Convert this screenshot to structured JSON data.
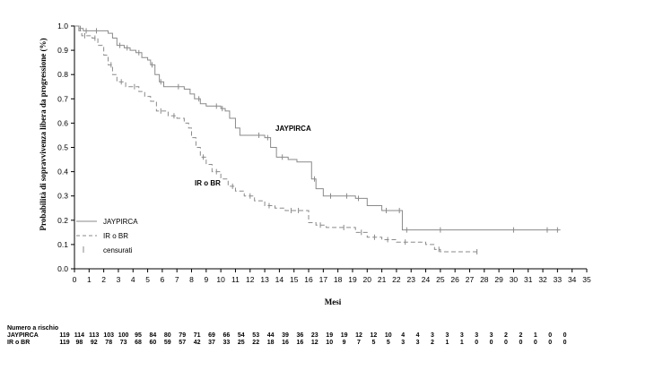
{
  "chart_data": {
    "type": "line",
    "ylabel": "Probabilità di sopravvivenza libera da progressione (%)",
    "xlabel": "Mesi",
    "xlim": [
      0,
      35
    ],
    "ylim": [
      0,
      1.0
    ],
    "x_ticks": [
      0,
      1,
      2,
      3,
      4,
      5,
      6,
      7,
      8,
      9,
      10,
      11,
      12,
      13,
      14,
      15,
      16,
      17,
      18,
      19,
      20,
      21,
      22,
      23,
      24,
      25,
      26,
      27,
      28,
      29,
      30,
      31,
      32,
      33,
      34,
      35
    ],
    "y_ticks": [
      "0.0",
      "0.1",
      "0.2",
      "0.3",
      "0.4",
      "0.5",
      "0.6",
      "0.7",
      "0.8",
      "0.9",
      "1.0"
    ],
    "grid": false,
    "series": [
      {
        "name": "JAYPIRCA",
        "line_style": "solid",
        "color": "#8a8a8a",
        "x": [
          0,
          0.3,
          0.6,
          1.2,
          2.3,
          2.6,
          2.9,
          3.4,
          3.8,
          4.2,
          4.6,
          5.0,
          5.2,
          5.5,
          5.8,
          6.1,
          6.5,
          7.5,
          7.9,
          8.2,
          8.6,
          9.0,
          9.6,
          10.0,
          10.3,
          10.6,
          11.0,
          11.3,
          12.2,
          13.0,
          13.4,
          13.8,
          14.6,
          15.2,
          15.9,
          16.2,
          16.5,
          17.0,
          18.1,
          19.2,
          20.0,
          20.6,
          21.0,
          22.0,
          22.4,
          33.2
        ],
        "y": [
          1.0,
          0.99,
          0.98,
          0.98,
          0.97,
          0.95,
          0.92,
          0.91,
          0.9,
          0.89,
          0.87,
          0.86,
          0.84,
          0.8,
          0.77,
          0.75,
          0.75,
          0.74,
          0.72,
          0.7,
          0.68,
          0.67,
          0.67,
          0.66,
          0.65,
          0.62,
          0.58,
          0.55,
          0.55,
          0.54,
          0.5,
          0.46,
          0.45,
          0.44,
          0.44,
          0.37,
          0.33,
          0.3,
          0.3,
          0.29,
          0.26,
          0.26,
          0.24,
          0.24,
          0.16,
          0.16
        ],
        "censored": [
          0.4,
          0.8,
          1.5,
          3.1,
          3.6,
          4.4,
          5.3,
          5.9,
          7.1,
          8.5,
          9.7,
          10.1,
          12.6,
          13.2,
          14.2,
          16.4,
          17.5,
          18.6,
          19.4,
          21.3,
          22.2,
          22.7,
          25.0,
          30.0,
          32.3,
          33.0
        ]
      },
      {
        "name": "IR o BR",
        "line_style": "dashed",
        "color": "#8a8a8a",
        "x": [
          0,
          0.3,
          0.5,
          1.2,
          1.6,
          2.0,
          2.3,
          2.6,
          2.9,
          3.5,
          4.4,
          4.8,
          5.2,
          5.6,
          6.4,
          7.0,
          7.5,
          7.8,
          8.0,
          8.3,
          8.6,
          9.0,
          9.4,
          10.0,
          10.5,
          11.0,
          11.6,
          12.3,
          13.0,
          13.7,
          14.4,
          16.0,
          16.5,
          17.2,
          18.0,
          19.2,
          20.0,
          21.0,
          22.0,
          24.0,
          24.6,
          25.0,
          27.6
        ],
        "y": [
          1.0,
          0.98,
          0.96,
          0.95,
          0.92,
          0.88,
          0.84,
          0.8,
          0.77,
          0.75,
          0.73,
          0.71,
          0.69,
          0.65,
          0.63,
          0.62,
          0.6,
          0.58,
          0.54,
          0.5,
          0.46,
          0.43,
          0.4,
          0.37,
          0.34,
          0.32,
          0.3,
          0.28,
          0.26,
          0.25,
          0.24,
          0.19,
          0.18,
          0.17,
          0.17,
          0.15,
          0.13,
          0.12,
          0.11,
          0.1,
          0.08,
          0.07,
          0.07
        ],
        "censored": [
          0.7,
          1.4,
          2.5,
          3.2,
          4.1,
          5.9,
          6.8,
          8.8,
          9.7,
          10.8,
          12.0,
          13.3,
          14.8,
          15.3,
          16.8,
          18.4,
          19.6,
          20.5,
          21.4,
          22.6,
          24.9,
          27.5
        ]
      }
    ],
    "legend": {
      "position": "bottom-left",
      "entries": [
        {
          "label": "JAYPIRCA",
          "style": "solid"
        },
        {
          "label": "IR o BR",
          "style": "dashed"
        },
        {
          "label": "censurati",
          "style": "censor-mark"
        }
      ]
    },
    "annotations": [
      {
        "text": "JAYPIRCA",
        "x": 13.5,
        "y": 0.57
      },
      {
        "text": "IR o BR",
        "x": 8.2,
        "y": 0.35
      }
    ],
    "risk_table": {
      "title": "Numero a rischio",
      "rows": [
        {
          "label": "JAYPIRCA",
          "values": [
            "119",
            "114",
            "113",
            "103",
            "100",
            "95",
            "84",
            "80",
            "79",
            "71",
            "69",
            "66",
            "54",
            "53",
            "44",
            "39",
            "36",
            "23",
            "19",
            "19",
            "12",
            "12",
            "10",
            "4",
            "4",
            "3",
            "3",
            "3",
            "3",
            "3",
            "2",
            "2",
            "1",
            "0",
            "0"
          ]
        },
        {
          "label": "IR o BR",
          "values": [
            "119",
            "98",
            "92",
            "78",
            "73",
            "68",
            "60",
            "59",
            "57",
            "42",
            "37",
            "33",
            "25",
            "22",
            "18",
            "16",
            "16",
            "12",
            "10",
            "9",
            "7",
            "5",
            "5",
            "3",
            "3",
            "2",
            "1",
            "1",
            "0",
            "0",
            "0",
            "0",
            "0",
            "0",
            "0"
          ]
        }
      ]
    }
  }
}
